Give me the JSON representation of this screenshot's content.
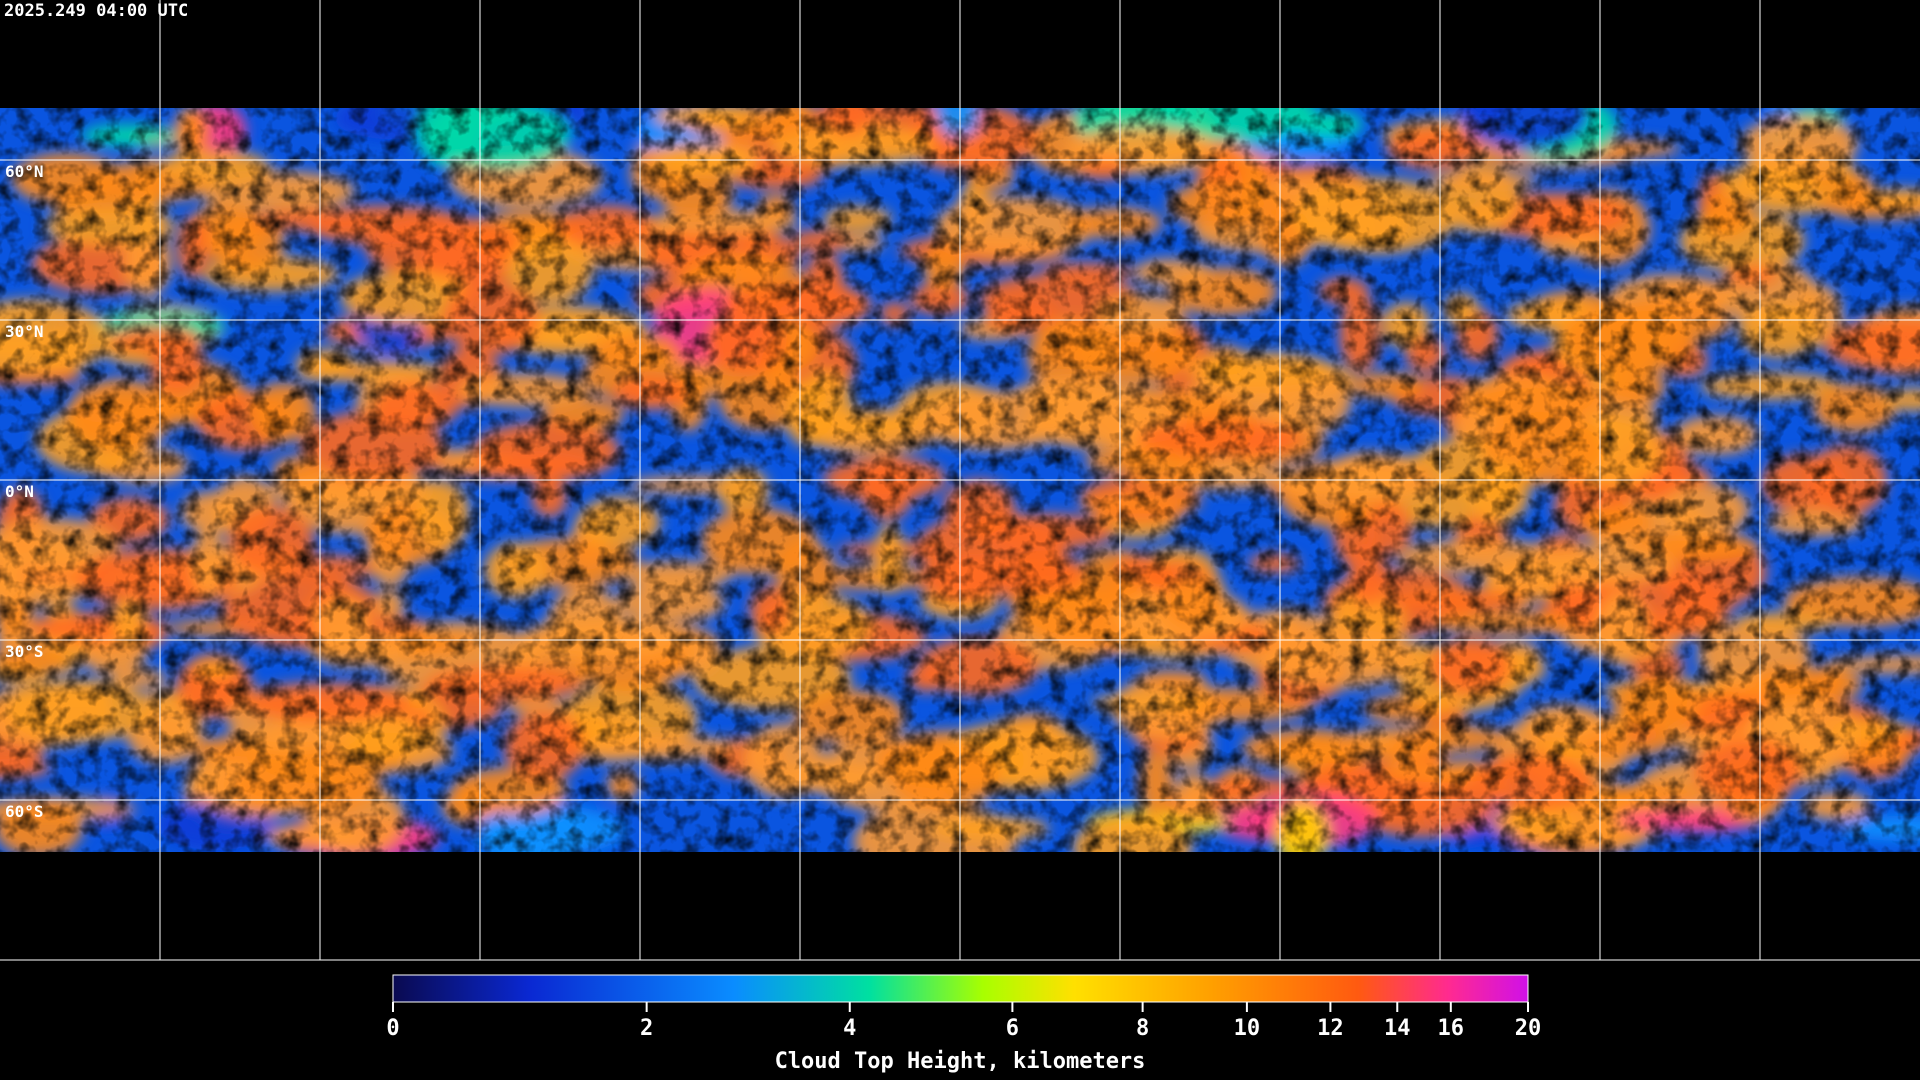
{
  "header": {
    "timestamp": "2025.249 04:00 UTC"
  },
  "map": {
    "lat_labels": [
      "60°N",
      "30°N",
      "0°N",
      "30°S",
      "60°S"
    ]
  },
  "colorbar": {
    "label": "Cloud Top Height, kilometers",
    "range": [
      0,
      20
    ],
    "ticks": [
      0,
      2,
      4,
      6,
      8,
      10,
      12,
      14,
      16,
      20
    ]
  }
}
